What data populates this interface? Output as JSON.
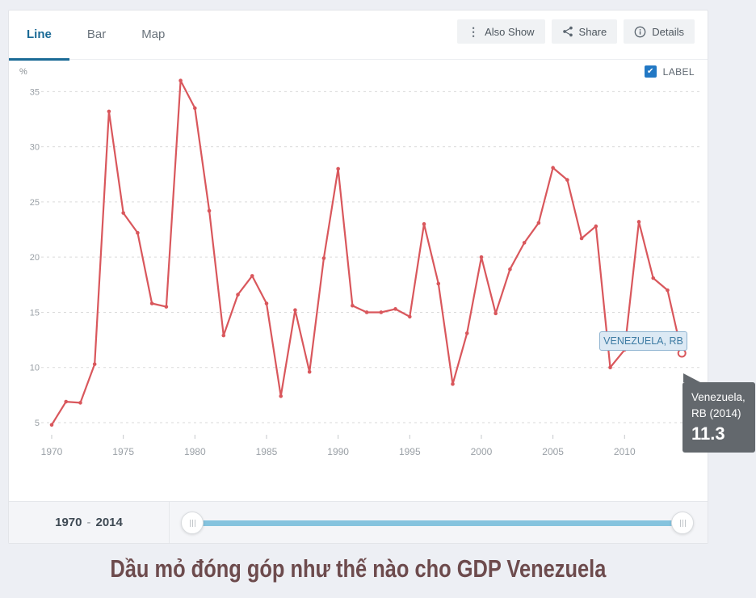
{
  "tabs": [
    {
      "label": "Line",
      "active": true
    },
    {
      "label": "Bar",
      "active": false
    },
    {
      "label": "Map",
      "active": false
    }
  ],
  "toolbar": {
    "also_show_label": "Also Show",
    "share_label": "Share",
    "details_label": "Details"
  },
  "chart_header": {
    "unit": "%",
    "label_checkbox_text": "LABEL",
    "label_checkbox_checked": true,
    "check_glyph": "✔"
  },
  "series_label_text": "VENEZUELA, RB",
  "tooltip": {
    "line1": "Venezuela,",
    "line2": "RB (2014)",
    "value": "11.3"
  },
  "slider": {
    "start": "1970",
    "separator": "-",
    "end": "2014"
  },
  "footer_title": "Dầu mỏ đóng góp như thế nào cho GDP Venezuela",
  "colors": {
    "line": "#d9575c",
    "accent_blue": "#1a6a96",
    "checkbox_blue": "#2278c4",
    "grid": "#dadada",
    "axis_text": "#9aa0a6",
    "tick": "#c5c8cb",
    "tooltip_bg": "#63686d",
    "slider_track": "#85c3de",
    "title_text": "#6d4b4d"
  },
  "chart_data": {
    "type": "line",
    "title": "Oil rents, % of GDP — Venezuela, RB, 1970-2014",
    "ylabel": "%",
    "xlabel": "",
    "grid": "horizontal-dashed",
    "legend_position": "none",
    "xlim": [
      1969.3,
      2015.8
    ],
    "ylim": [
      3.2,
      37.2
    ],
    "xticks": [
      1970,
      1975,
      1980,
      1985,
      1990,
      1995,
      2000,
      2005,
      2010
    ],
    "yticks": [
      5,
      10,
      15,
      20,
      25,
      30,
      35
    ],
    "series": [
      {
        "name": "Venezuela, RB",
        "x": [
          1970,
          1971,
          1972,
          1973,
          1974,
          1975,
          1976,
          1977,
          1978,
          1979,
          1980,
          1981,
          1982,
          1983,
          1984,
          1985,
          1986,
          1987,
          1988,
          1989,
          1990,
          1991,
          1992,
          1993,
          1994,
          1995,
          1996,
          1997,
          1998,
          1999,
          2000,
          2001,
          2002,
          2003,
          2004,
          2005,
          2006,
          2007,
          2008,
          2009,
          2010,
          2011,
          2012,
          2013,
          2014
        ],
        "values": [
          4.8,
          6.9,
          6.8,
          10.3,
          33.2,
          24.0,
          22.2,
          15.8,
          15.5,
          36.0,
          33.5,
          24.2,
          12.9,
          16.6,
          18.3,
          15.8,
          7.4,
          15.2,
          9.6,
          19.9,
          28.0,
          15.6,
          15.0,
          15.0,
          15.3,
          14.6,
          23.0,
          17.6,
          8.5,
          13.1,
          20.0,
          14.9,
          18.9,
          21.3,
          23.1,
          28.1,
          27.0,
          21.7,
          22.8,
          10.0,
          11.6,
          23.2,
          18.1,
          17.0,
          11.3
        ]
      }
    ],
    "highlight_point": {
      "x": 2014,
      "value": 11.3
    }
  }
}
